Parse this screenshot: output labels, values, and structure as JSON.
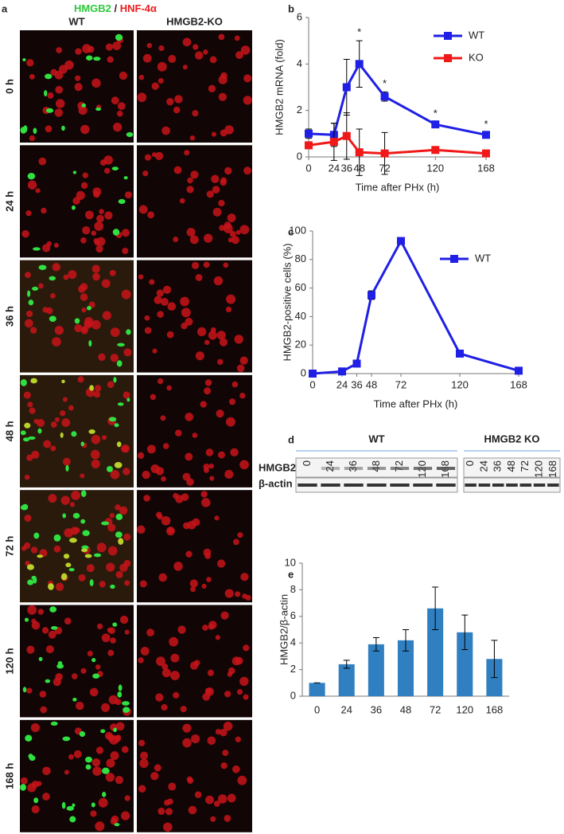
{
  "microscopy": {
    "panel_label": "a",
    "title_green": "HMGB2",
    "title_sep": "/",
    "title_red": "HNF-4α",
    "columns": [
      "WT",
      "HMGB2-KO"
    ],
    "rows": [
      "0 h",
      "24 h",
      "36 h",
      "48 h",
      "72 h",
      "120 h",
      "168 h"
    ]
  },
  "blot": {
    "panel_label": "d",
    "groups": [
      {
        "name": "WT",
        "lanes": [
          "0",
          "24",
          "36",
          "48",
          "72",
          "120",
          "168"
        ]
      },
      {
        "name": "HMGB2 KO",
        "lanes": [
          "0",
          "24",
          "36",
          "48",
          "72",
          "120",
          "168"
        ]
      }
    ],
    "bands": [
      "HMGB2",
      "β-actin"
    ]
  },
  "chart_data": [
    {
      "type": "line",
      "panel_label": "b",
      "ylabel": "HMGB2 mRNA (fold)",
      "xlabel": "Time after PHx (h)",
      "x": [
        0,
        24,
        36,
        48,
        72,
        120,
        168
      ],
      "xlim": [
        0,
        168
      ],
      "xticks": [
        0,
        24,
        36,
        48,
        72,
        120,
        168
      ],
      "ylim": [
        0,
        6
      ],
      "yticks": [
        0,
        2,
        4,
        6
      ],
      "legend": "upper right",
      "series": [
        {
          "name": "WT",
          "color": "#1f1fe6",
          "values": [
            1,
            0.95,
            3,
            4,
            2.6,
            1.4,
            0.95
          ],
          "errors": [
            0.2,
            0.5,
            1.2,
            1.0,
            0.2,
            0.1,
            0.1
          ]
        },
        {
          "name": "KO",
          "color": "#f01818",
          "values": [
            0.5,
            0.65,
            0.9,
            0.2,
            0.15,
            0.3,
            0.15
          ],
          "errors": [
            0.1,
            0.8,
            1.0,
            1.0,
            0.9,
            0.1,
            0.1
          ]
        }
      ],
      "annotations": [
        {
          "x": 48,
          "text": "*"
        },
        {
          "x": 72,
          "text": "*"
        },
        {
          "x": 120,
          "text": "*"
        },
        {
          "x": 168,
          "text": "*"
        }
      ]
    },
    {
      "type": "line",
      "panel_label": "c",
      "ylabel": "HMGB2-positive cells (%)",
      "xlabel": "Time after PHx (h)",
      "x": [
        0,
        24,
        36,
        48,
        72,
        120,
        168
      ],
      "xlim": [
        0,
        168
      ],
      "xticks": [
        0,
        24,
        36,
        48,
        72,
        120,
        168
      ],
      "ylim": [
        0,
        100
      ],
      "yticks": [
        0,
        20,
        40,
        60,
        80,
        100
      ],
      "legend": "upper right",
      "series": [
        {
          "name": "WT",
          "color": "#1f1fe6",
          "values": [
            0,
            1.5,
            7,
            55,
            93,
            14,
            2
          ],
          "errors": [
            0.5,
            0.5,
            1,
            3,
            2,
            1,
            1
          ]
        }
      ]
    },
    {
      "type": "bar",
      "panel_label": "e",
      "ylabel": "HMGB2/β-actin",
      "categories": [
        "0",
        "24",
        "36",
        "48",
        "72",
        "120",
        "168"
      ],
      "ylim": [
        0,
        10
      ],
      "yticks": [
        0,
        2,
        4,
        6,
        8,
        10
      ],
      "color": "#2f7fc1",
      "values": [
        1,
        2.4,
        3.9,
        4.2,
        6.6,
        4.8,
        2.8
      ],
      "errors": [
        0,
        0.3,
        0.5,
        0.8,
        1.6,
        1.3,
        1.4
      ]
    }
  ]
}
